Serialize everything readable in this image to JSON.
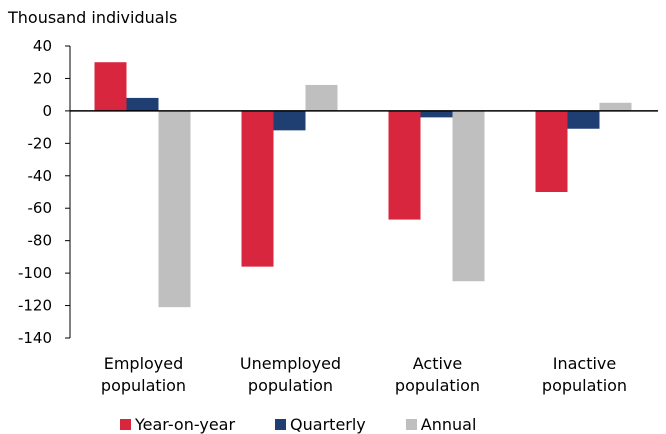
{
  "chart_data": {
    "type": "bar",
    "ylabel": "Thousand individuals",
    "ylim": [
      -140,
      40
    ],
    "yticks": [
      40,
      20,
      0,
      -20,
      -40,
      -60,
      -80,
      -100,
      -120,
      -140
    ],
    "categories": [
      [
        "Employed",
        "population"
      ],
      [
        "Unemployed",
        "population"
      ],
      [
        "Active",
        "population"
      ],
      [
        "Inactive",
        "population"
      ]
    ],
    "series": [
      {
        "name": "Year-on-year",
        "color": "#d7263d",
        "values": [
          30,
          -96,
          -67,
          -50
        ]
      },
      {
        "name": "Quarterly",
        "color": "#1f3f73",
        "values": [
          8,
          -12,
          -4,
          -11
        ]
      },
      {
        "name": "Annual",
        "color": "#bfbfbf",
        "values": [
          -121,
          16,
          -105,
          5
        ]
      }
    ],
    "grid": false,
    "legend_position": "bottom"
  }
}
